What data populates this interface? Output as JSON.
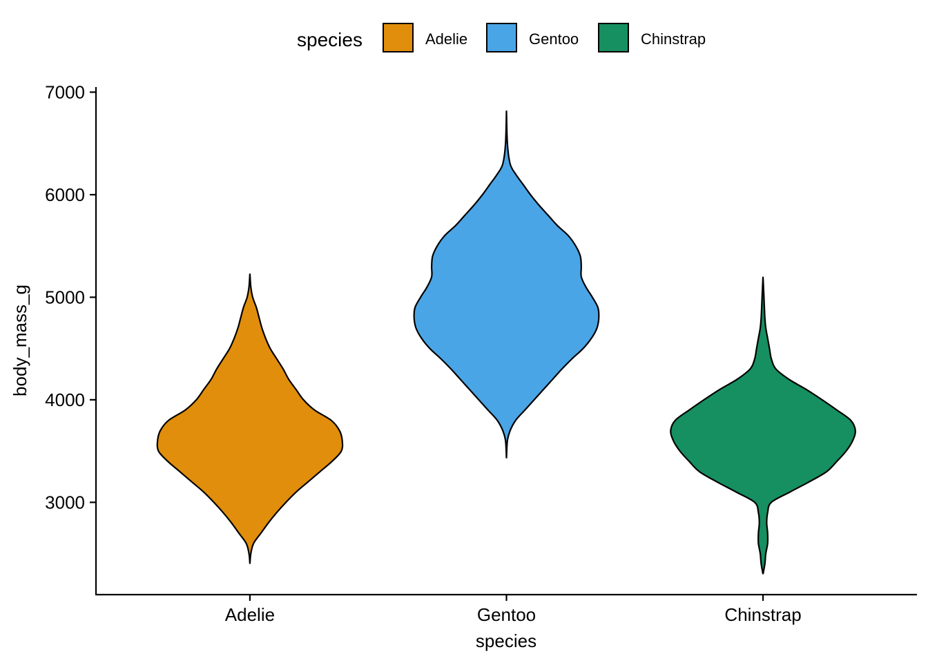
{
  "chart_data": {
    "type": "violin",
    "xlabel": "species",
    "ylabel": "body_mass_g",
    "ylim": [
      2100,
      7050
    ],
    "yticks": [
      3000,
      4000,
      5000,
      6000,
      7000
    ],
    "grid": false,
    "legend": {
      "title": "species",
      "position": "top",
      "entries": [
        "Adelie",
        "Gentoo",
        "Chinstrap"
      ]
    },
    "categories": [
      "Adelie",
      "Gentoo",
      "Chinstrap"
    ],
    "colors": {
      "Adelie": "#E08E0B",
      "Gentoo": "#4AA5E6",
      "Chinstrap": "#168F61"
    },
    "series": [
      {
        "name": "Adelie",
        "min": 2850,
        "max": 4775,
        "density": [
          [
            2400,
            0.0
          ],
          [
            2500,
            0.01
          ],
          [
            2600,
            0.04
          ],
          [
            2700,
            0.12
          ],
          [
            2800,
            0.2
          ],
          [
            2900,
            0.29
          ],
          [
            3000,
            0.39
          ],
          [
            3100,
            0.5
          ],
          [
            3200,
            0.63
          ],
          [
            3300,
            0.76
          ],
          [
            3400,
            0.89
          ],
          [
            3500,
            0.99
          ],
          [
            3600,
            1.0
          ],
          [
            3700,
            0.97
          ],
          [
            3800,
            0.88
          ],
          [
            3900,
            0.7
          ],
          [
            4000,
            0.58
          ],
          [
            4100,
            0.5
          ],
          [
            4200,
            0.42
          ],
          [
            4300,
            0.36
          ],
          [
            4400,
            0.29
          ],
          [
            4500,
            0.22
          ],
          [
            4600,
            0.17
          ],
          [
            4700,
            0.13
          ],
          [
            4800,
            0.1
          ],
          [
            4900,
            0.07
          ],
          [
            5000,
            0.03
          ],
          [
            5100,
            0.01
          ],
          [
            5230,
            0.0
          ]
        ]
      },
      {
        "name": "Gentoo",
        "min": 3950,
        "max": 6300,
        "density": [
          [
            3430,
            0.0
          ],
          [
            3600,
            0.01
          ],
          [
            3700,
            0.04
          ],
          [
            3800,
            0.1
          ],
          [
            3900,
            0.2
          ],
          [
            4000,
            0.3
          ],
          [
            4100,
            0.4
          ],
          [
            4200,
            0.5
          ],
          [
            4300,
            0.6
          ],
          [
            4400,
            0.71
          ],
          [
            4500,
            0.83
          ],
          [
            4600,
            0.92
          ],
          [
            4700,
            0.98
          ],
          [
            4800,
            1.0
          ],
          [
            4900,
            0.99
          ],
          [
            5000,
            0.93
          ],
          [
            5100,
            0.86
          ],
          [
            5200,
            0.81
          ],
          [
            5300,
            0.81
          ],
          [
            5400,
            0.8
          ],
          [
            5500,
            0.75
          ],
          [
            5600,
            0.67
          ],
          [
            5700,
            0.55
          ],
          [
            5800,
            0.45
          ],
          [
            5900,
            0.35
          ],
          [
            6000,
            0.26
          ],
          [
            6100,
            0.18
          ],
          [
            6200,
            0.1
          ],
          [
            6300,
            0.04
          ],
          [
            6500,
            0.01
          ],
          [
            6820,
            0.0
          ]
        ]
      },
      {
        "name": "Chinstrap",
        "min": 2700,
        "max": 4800,
        "density": [
          [
            2300,
            0.0
          ],
          [
            2400,
            0.02
          ],
          [
            2500,
            0.03
          ],
          [
            2600,
            0.05
          ],
          [
            2700,
            0.05
          ],
          [
            2800,
            0.04
          ],
          [
            2900,
            0.05
          ],
          [
            3000,
            0.09
          ],
          [
            3100,
            0.29
          ],
          [
            3200,
            0.5
          ],
          [
            3300,
            0.69
          ],
          [
            3400,
            0.8
          ],
          [
            3500,
            0.9
          ],
          [
            3600,
            0.97
          ],
          [
            3700,
            1.0
          ],
          [
            3800,
            0.95
          ],
          [
            3900,
            0.8
          ],
          [
            4000,
            0.64
          ],
          [
            4100,
            0.47
          ],
          [
            4200,
            0.28
          ],
          [
            4300,
            0.14
          ],
          [
            4400,
            0.09
          ],
          [
            4500,
            0.07
          ],
          [
            4600,
            0.05
          ],
          [
            4700,
            0.03
          ],
          [
            4800,
            0.02
          ],
          [
            5000,
            0.01
          ],
          [
            5200,
            0.0
          ]
        ]
      }
    ]
  }
}
